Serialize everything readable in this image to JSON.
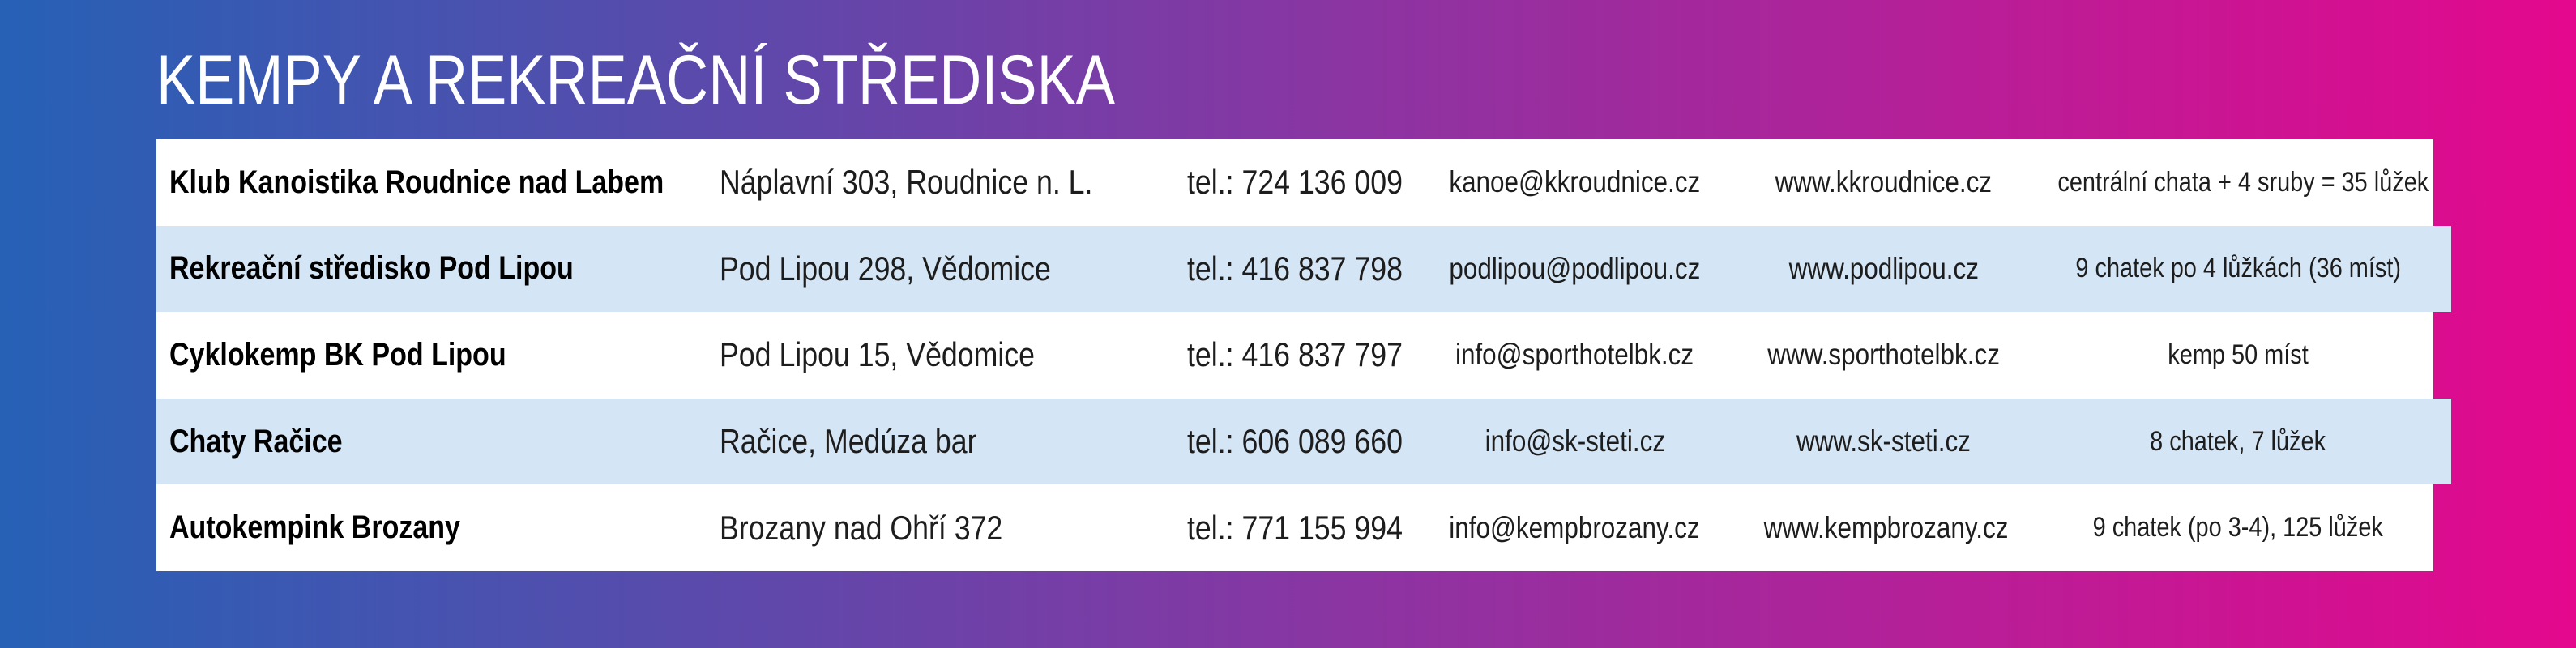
{
  "page": {
    "title": "KEMPY A REKREAČNÍ STŘEDISKA"
  },
  "colors": {
    "gradient_left": "#2661b6",
    "gradient_right": "#e4088d",
    "row_alt": "#d4e5f5",
    "row_default": "#ffffff",
    "title_text": "#ffffff",
    "body_text": "#1d1d1d"
  },
  "table": {
    "rows": [
      {
        "name": "Klub Kanoistika Roudnice nad Labem",
        "address": "Náplavní 303, Roudnice n. L.",
        "phone": "tel.: 724 136 009",
        "email": "kanoe@kkroudnice.cz",
        "web": "www.kkroudnice.cz",
        "capacity": "centrální chata + 4 sruby = 35 lůžek"
      },
      {
        "name": "Rekreační středisko Pod Lipou",
        "address": "Pod Lipou 298, Vědomice",
        "phone": "tel.: 416 837 798",
        "email": "podlipou@podlipou.cz",
        "web": "www.podlipou.cz",
        "capacity": "9 chatek po 4 lůžkách (36 míst)"
      },
      {
        "name": "Cyklokemp BK Pod Lipou",
        "address": "Pod Lipou 15, Vědomice",
        "phone": "tel.: 416 837 797",
        "email": "info@sporthotelbk.cz",
        "web": "www.sporthotelbk.cz",
        "capacity": "kemp 50 míst"
      },
      {
        "name": "Chaty Račice",
        "address": "Račice, Medúza bar",
        "phone": "tel.: 606 089 660",
        "email": "info@sk-steti.cz",
        "web": "www.sk-steti.cz",
        "capacity": "8 chatek, 7 lůžek"
      },
      {
        "name": "Autokempink Brozany",
        "address": "Brozany nad Ohří 372",
        "phone": "tel.: 771 155 994",
        "email": "info@kempbrozany.cz",
        "web": "www.kempbrozany.cz",
        "capacity": "9 chatek (po 3-4), 125 lůžek"
      }
    ]
  }
}
